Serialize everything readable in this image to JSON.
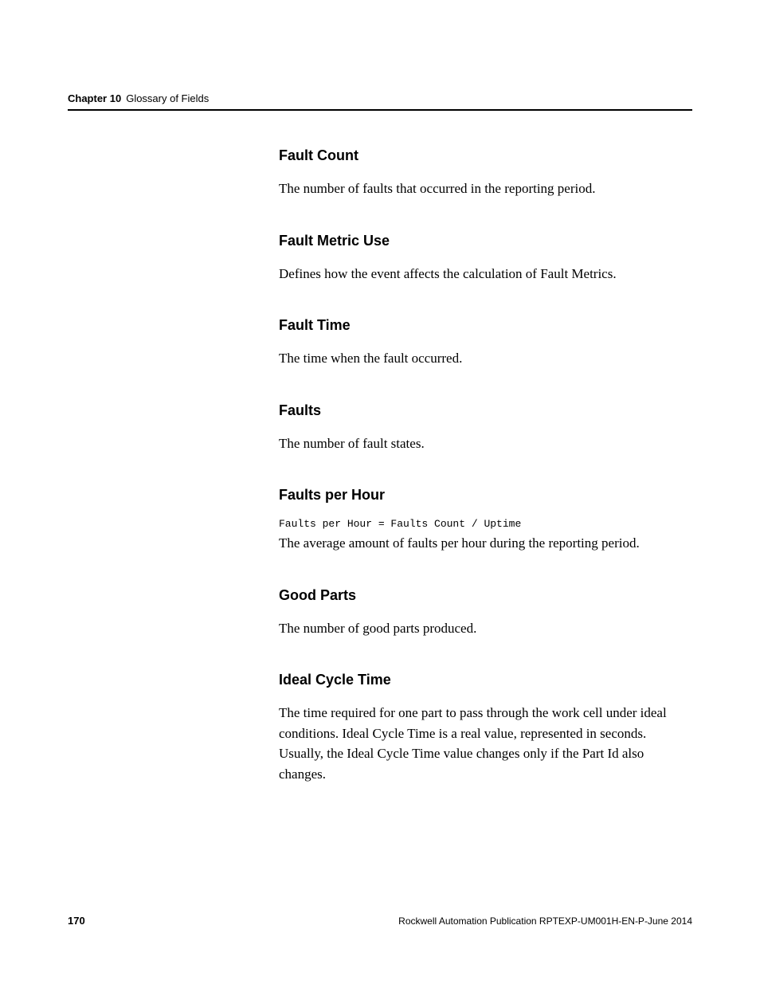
{
  "header": {
    "chapter_label": "Chapter 10",
    "chapter_title": "Glossary of Fields"
  },
  "terms": [
    {
      "heading": "Fault Count",
      "description": "The number of faults that occurred in the reporting period."
    },
    {
      "heading": "Fault Metric Use",
      "description": "Defines how the event affects the calculation of Fault Metrics."
    },
    {
      "heading": "Fault Time",
      "description": "The time when the fault occurred."
    },
    {
      "heading": "Faults",
      "description": "The number of fault states."
    },
    {
      "heading": "Faults per Hour",
      "formula": "Faults per Hour = Faults Count / Uptime",
      "description": "The average amount of faults per hour during the reporting period."
    },
    {
      "heading": "Good Parts",
      "description": "The number of good parts produced."
    },
    {
      "heading": "Ideal Cycle Time",
      "description": "The time required for one part to pass through the work cell under ideal conditions. Ideal Cycle Time is a real value, represented in seconds. Usually, the Ideal Cycle Time value changes only if the Part Id also changes."
    }
  ],
  "footer": {
    "page_number": "170",
    "publication": "Rockwell Automation Publication RPTEXP-UM001H-EN-P-June 2014"
  },
  "styles": {
    "background_color": "#ffffff",
    "text_color": "#000000",
    "heading_font": "Arial",
    "body_font": "Georgia",
    "formula_font": "Courier New",
    "heading_fontsize": 18,
    "body_fontsize": 17,
    "formula_fontsize": 13,
    "header_fontsize": 13,
    "footer_fontsize": 12,
    "rule_color": "#000000",
    "rule_width": 2
  }
}
